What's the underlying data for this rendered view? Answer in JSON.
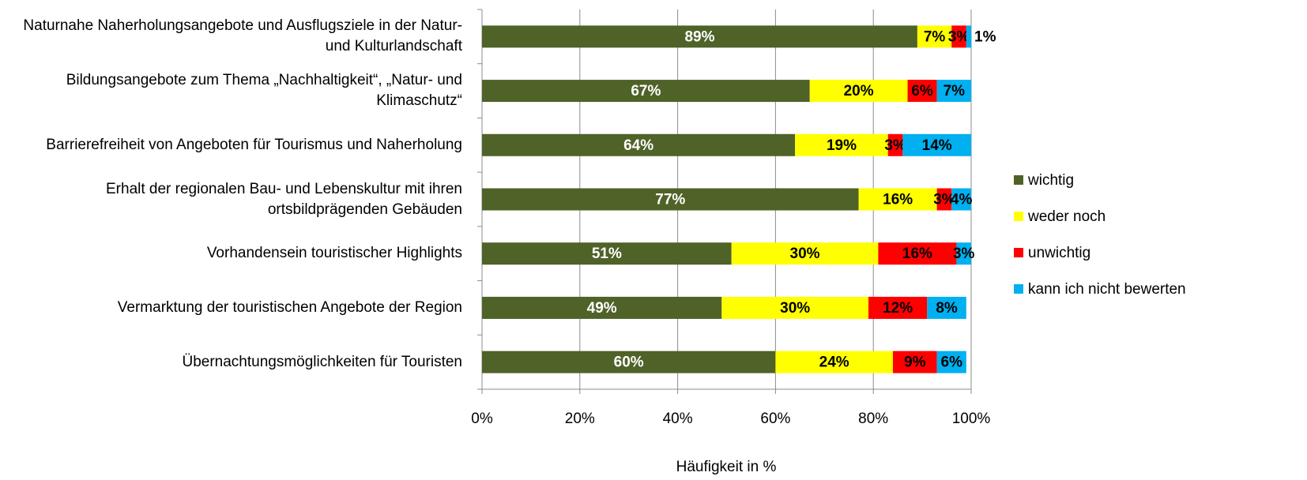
{
  "chart_data": {
    "type": "stacked-barh",
    "x_label": "Häufigkeit in %",
    "categories": [
      "Naturnahe Naherholungsangebote und Ausflugsziele in der Natur- und Kulturlandschaft",
      "Bildungsangebote zum Thema „Nachhaltigkeit“, „Natur- und Klimaschutz“",
      "Barrierefreiheit von Angeboten für Tourismus und Naherholung",
      "Erhalt der regionalen Bau- und Lebenskultur mit ihren ortsbildprägenden Gebäuden",
      "Vorhandensein touristischer Highlights",
      "Vermarktung der touristischen Angebote der Region",
      "Übernachtungsmöglichkeiten für Touristen"
    ],
    "series": [
      {
        "name": "wichtig",
        "color": "#4f6228",
        "label_color": "#ffffff",
        "values": [
          89,
          67,
          64,
          77,
          51,
          49,
          60
        ],
        "value_labels": [
          "89%",
          "67%",
          "64%",
          "77%",
          "51%",
          "49%",
          "60%"
        ]
      },
      {
        "name": "weder noch",
        "color": "#ffff00",
        "label_color": "#000000",
        "values": [
          7,
          20,
          19,
          16,
          30,
          30,
          24
        ],
        "value_labels": [
          "7%",
          "20%",
          "19%",
          "16%",
          "30%",
          "30%",
          "24%"
        ]
      },
      {
        "name": "unwichtig",
        "color": "#ff0000",
        "label_color": "#000000",
        "values": [
          3,
          6,
          3,
          3,
          16,
          12,
          9
        ],
        "value_labels": [
          "3%",
          "6%",
          "3%",
          "3%",
          "16%",
          "12%",
          "9%"
        ]
      },
      {
        "name": "kann ich nicht bewerten",
        "color": "#00b0f0",
        "label_color": "#000000",
        "values": [
          1,
          7,
          14,
          4,
          3,
          8,
          6
        ],
        "value_labels": [
          "1%",
          "7%",
          "14%",
          "4%",
          "3%",
          "8%",
          "6%"
        ]
      }
    ],
    "xlim": [
      0,
      100
    ],
    "xticks": [
      {
        "value": 0,
        "label": "0%"
      },
      {
        "value": 20,
        "label": "20%"
      },
      {
        "value": 40,
        "label": "40%"
      },
      {
        "value": 60,
        "label": "60%"
      },
      {
        "value": 80,
        "label": "80%"
      },
      {
        "value": 100,
        "label": "100%"
      }
    ],
    "grid": true,
    "legend": "right"
  }
}
